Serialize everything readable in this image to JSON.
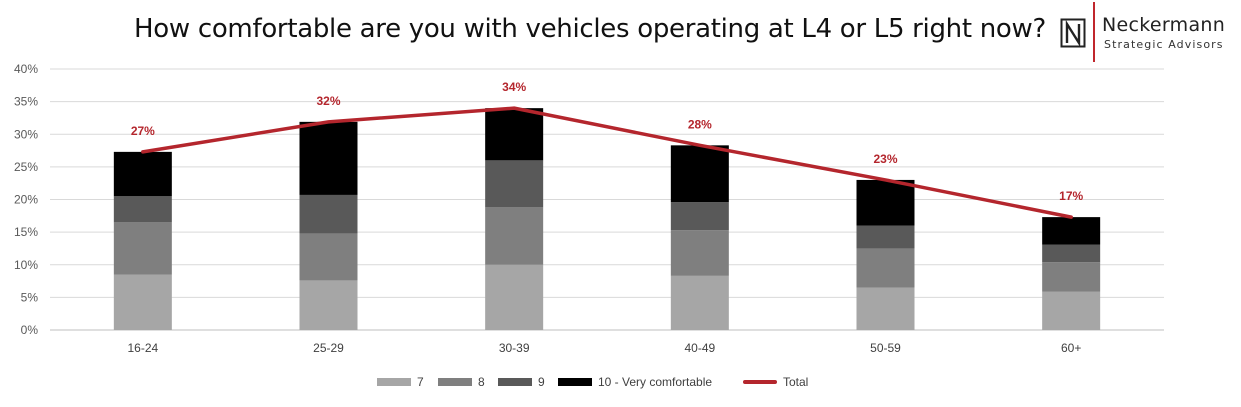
{
  "header": {
    "title": "How comfortable are you with vehicles operating at L4 or L5 right now?",
    "logo_name": "Neckermann",
    "logo_sub": "Strategic Advisors"
  },
  "colors": {
    "s7": "#a6a6a6",
    "s8": "#7f7f7f",
    "s9": "#595959",
    "s10": "#000000",
    "total": "#b4262d",
    "grid": "#d9d9d9",
    "logo_accent": "#c0262c"
  },
  "chart_data": {
    "type": "bar",
    "stacked": true,
    "title": "How comfortable are you with vehicles operating at L4 or L5 right now?",
    "categories": [
      "16-24",
      "25-29",
      "30-39",
      "40-49",
      "50-59",
      "60+"
    ],
    "series": [
      {
        "name": "7",
        "values": [
          8.5,
          7.6,
          10.0,
          8.3,
          6.5,
          5.9
        ]
      },
      {
        "name": "8",
        "values": [
          8.0,
          7.2,
          8.8,
          7.0,
          6.0,
          4.5
        ]
      },
      {
        "name": "9",
        "values": [
          4.0,
          5.9,
          7.2,
          4.3,
          3.5,
          2.7
        ]
      },
      {
        "name": "10 - Very comfortable",
        "values": [
          6.8,
          11.2,
          8.0,
          8.7,
          7.0,
          4.2
        ]
      }
    ],
    "line_series": {
      "name": "Total",
      "values": [
        27.3,
        31.9,
        34.0,
        28.3,
        23.0,
        17.3
      ]
    },
    "data_labels": [
      "27%",
      "32%",
      "34%",
      "28%",
      "23%",
      "17%"
    ],
    "yticks": [
      "0%",
      "5%",
      "10%",
      "15%",
      "20%",
      "25%",
      "30%",
      "35%",
      "40%"
    ],
    "ylim": [
      0,
      40
    ],
    "grid": true,
    "legend_position": "bottom"
  }
}
